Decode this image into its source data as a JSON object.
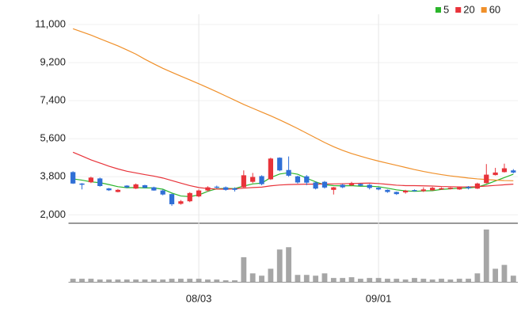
{
  "chart_data": {
    "type": "candlestick",
    "categories": [
      null,
      null,
      null,
      null,
      null,
      null,
      null,
      null,
      null,
      null,
      null,
      null,
      null,
      null,
      "08/03",
      null,
      null,
      null,
      null,
      null,
      null,
      null,
      null,
      null,
      null,
      null,
      null,
      null,
      null,
      null,
      null,
      null,
      null,
      null,
      "09/01",
      null,
      null,
      null,
      null,
      null,
      null,
      null,
      null,
      null,
      null,
      null,
      null,
      null,
      null,
      null
    ],
    "ohlc": {
      "open": [
        4020,
        3480,
        3540,
        3720,
        3250,
        3080,
        3380,
        3240,
        3400,
        3300,
        3150,
        2980,
        2520,
        2640,
        2870,
        3150,
        3330,
        3300,
        3250,
        3300,
        3560,
        3830,
        3680,
        4700,
        4120,
        3820,
        3820,
        3530,
        3560,
        3180,
        3420,
        3400,
        3460,
        3420,
        3280,
        3180,
        3080,
        3060,
        3170,
        3120,
        3160,
        3200,
        3220,
        3200,
        3320,
        3240,
        3500,
        3880,
        4020,
        4100
      ],
      "high": [
        4060,
        3500,
        3800,
        3760,
        3270,
        3220,
        3400,
        3480,
        3420,
        3330,
        3200,
        3000,
        2700,
        3070,
        3200,
        3350,
        3380,
        3340,
        3300,
        4100,
        3980,
        3870,
        4700,
        4720,
        4760,
        3850,
        3880,
        3580,
        3600,
        3320,
        3460,
        3560,
        3480,
        3460,
        3310,
        3200,
        3100,
        3180,
        3200,
        3300,
        3320,
        3300,
        3300,
        3320,
        3360,
        3520,
        4400,
        4220,
        4420,
        4160
      ],
      "low": [
        3460,
        3200,
        3500,
        3330,
        3130,
        3060,
        3260,
        3220,
        3260,
        3140,
        2920,
        2420,
        2480,
        2600,
        2830,
        3100,
        3250,
        3140,
        3100,
        3280,
        3500,
        3400,
        3650,
        4060,
        3800,
        3480,
        3400,
        3200,
        3240,
        2960,
        3260,
        3360,
        3350,
        3200,
        3160,
        3040,
        2940,
        3000,
        3100,
        3080,
        3140,
        3180,
        3200,
        3180,
        3200,
        3220,
        3480,
        3860,
        4000,
        3960
      ],
      "close": [
        3480,
        3420,
        3760,
        3360,
        3160,
        3180,
        3300,
        3440,
        3280,
        3150,
        2960,
        2500,
        2640,
        3030,
        3150,
        3300,
        3280,
        3180,
        3180,
        3870,
        3790,
        3450,
        4660,
        4100,
        3850,
        3530,
        3520,
        3240,
        3290,
        3300,
        3300,
        3500,
        3380,
        3270,
        3200,
        3080,
        2980,
        3140,
        3120,
        3200,
        3280,
        3260,
        3280,
        3300,
        3260,
        3480,
        3900,
        4000,
        4200,
        4000
      ]
    },
    "up_color": "#e8333a",
    "down_color": "#2f6fd6",
    "moving_averages": [
      {
        "name": "5",
        "color": "#2bb52b",
        "values": [
          3700,
          3640,
          3560,
          3520,
          3430,
          3330,
          3280,
          3290,
          3270,
          3270,
          3210,
          3030,
          2890,
          2860,
          2940,
          3110,
          3230,
          3250,
          3240,
          3360,
          3460,
          3500,
          3760,
          3930,
          3990,
          3920,
          3730,
          3560,
          3420,
          3380,
          3370,
          3380,
          3350,
          3350,
          3330,
          3260,
          3180,
          3130,
          3110,
          3130,
          3140,
          3200,
          3230,
          3260,
          3270,
          3310,
          3440,
          3600,
          3760,
          3920
        ]
      },
      {
        "name": "20",
        "color": "#e8333a",
        "values": [
          4960,
          4780,
          4600,
          4450,
          4300,
          4170,
          4060,
          3980,
          3900,
          3830,
          3740,
          3620,
          3500,
          3380,
          3290,
          3240,
          3220,
          3210,
          3230,
          3260,
          3290,
          3310,
          3370,
          3410,
          3430,
          3440,
          3450,
          3450,
          3460,
          3460,
          3470,
          3480,
          3490,
          3500,
          3480,
          3440,
          3400,
          3380,
          3380,
          3370,
          3360,
          3340,
          3330,
          3320,
          3320,
          3330,
          3360,
          3390,
          3420,
          3450
        ]
      },
      {
        "name": "60",
        "color": "#f0902a",
        "values": [
          10800,
          10650,
          10500,
          10330,
          10160,
          9990,
          9800,
          9600,
          9360,
          9140,
          8930,
          8740,
          8560,
          8380,
          8200,
          8010,
          7820,
          7620,
          7420,
          7220,
          7040,
          6860,
          6680,
          6490,
          6290,
          6080,
          5860,
          5640,
          5420,
          5220,
          5050,
          4900,
          4770,
          4650,
          4540,
          4440,
          4340,
          4240,
          4140,
          4050,
          3970,
          3900,
          3840,
          3790,
          3740,
          3700,
          3670,
          3640,
          3620,
          3610
        ]
      }
    ],
    "volume": {
      "color": "#a6a6a6",
      "values": [
        4,
        4,
        4,
        3,
        3,
        3,
        3,
        3,
        3,
        3,
        3,
        4,
        4,
        4,
        4,
        3,
        3,
        2,
        2,
        32,
        11,
        8,
        17,
        42,
        45,
        9,
        9,
        8,
        11,
        5,
        5,
        6,
        4,
        5,
        5,
        4,
        4,
        3,
        5,
        4,
        3,
        4,
        3,
        4,
        4,
        11,
        68,
        17,
        22,
        8
      ]
    },
    "volume_lim": [
      0,
      72
    ],
    "ylim": [
      1600,
      11300
    ],
    "yticks": [
      {
        "value": 2000,
        "label": "2,000"
      },
      {
        "value": 3800,
        "label": "3,800"
      },
      {
        "value": 5600,
        "label": "5,600"
      },
      {
        "value": 7400,
        "label": "7,400"
      },
      {
        "value": 9200,
        "label": "9,200"
      },
      {
        "value": 11000,
        "label": "11,000"
      }
    ],
    "grid": true
  }
}
